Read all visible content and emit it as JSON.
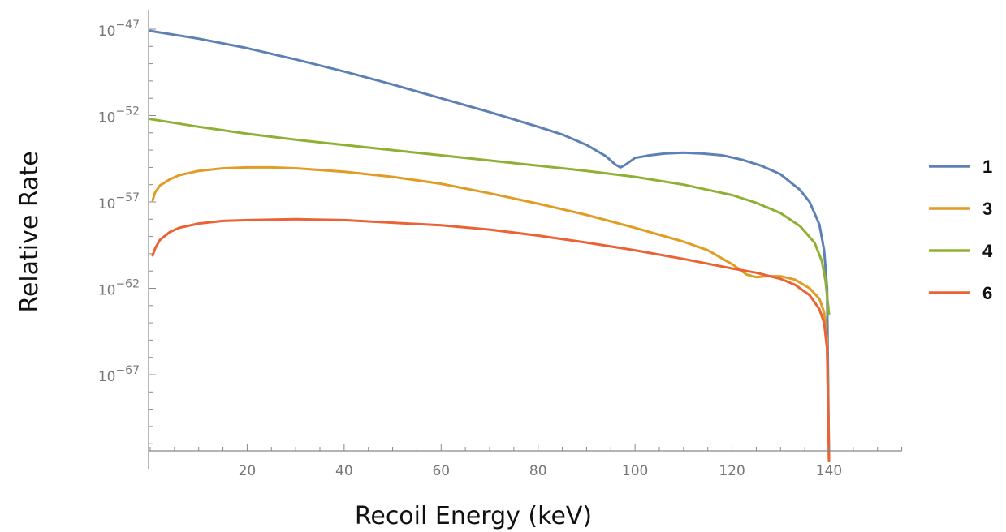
{
  "chart_data": {
    "type": "line",
    "title": "",
    "xlabel": "Recoil Energy (keV)",
    "ylabel": "Relative Rate",
    "y_scale": "log",
    "xlim": [
      0,
      155
    ],
    "ylim_exponent": [
      -72,
      -46.5
    ],
    "x_ticks": [
      20,
      40,
      60,
      80,
      100,
      120,
      140
    ],
    "y_tick_exponents": [
      -47,
      -52,
      -57,
      -62,
      -67
    ],
    "y_tick_labels": [
      {
        "base": "10",
        "exp": "−47"
      },
      {
        "base": "10",
        "exp": "−52"
      },
      {
        "base": "10",
        "exp": "−57"
      },
      {
        "base": "10",
        "exp": "−62"
      },
      {
        "base": "10",
        "exp": "−67"
      }
    ],
    "grid": false,
    "legend_position": "right",
    "series": [
      {
        "name": "1",
        "color": "#5e81b5",
        "points": [
          [
            0,
            -47.1
          ],
          [
            10,
            -47.55
          ],
          [
            20,
            -48.1
          ],
          [
            30,
            -48.75
          ],
          [
            40,
            -49.45
          ],
          [
            50,
            -50.2
          ],
          [
            60,
            -51.0
          ],
          [
            70,
            -51.8
          ],
          [
            80,
            -52.65
          ],
          [
            85,
            -53.1
          ],
          [
            90,
            -53.7
          ],
          [
            94,
            -54.35
          ],
          [
            96,
            -54.85
          ],
          [
            97,
            -55.0
          ],
          [
            98,
            -54.85
          ],
          [
            100,
            -54.45
          ],
          [
            103,
            -54.3
          ],
          [
            106,
            -54.2
          ],
          [
            110,
            -54.15
          ],
          [
            114,
            -54.2
          ],
          [
            118,
            -54.3
          ],
          [
            122,
            -54.55
          ],
          [
            126,
            -54.9
          ],
          [
            130,
            -55.4
          ],
          [
            134,
            -56.3
          ],
          [
            136,
            -57.0
          ],
          [
            138,
            -58.3
          ],
          [
            139,
            -59.8
          ],
          [
            139.6,
            -62.0
          ],
          [
            140,
            -72.0
          ]
        ]
      },
      {
        "name": "3",
        "color": "#e19c24",
        "points": [
          [
            0.5,
            -56.9
          ],
          [
            1,
            -56.45
          ],
          [
            2,
            -56.05
          ],
          [
            4,
            -55.7
          ],
          [
            6,
            -55.45
          ],
          [
            10,
            -55.2
          ],
          [
            15,
            -55.05
          ],
          [
            20,
            -55.0
          ],
          [
            25,
            -55.0
          ],
          [
            30,
            -55.05
          ],
          [
            40,
            -55.25
          ],
          [
            50,
            -55.55
          ],
          [
            60,
            -55.95
          ],
          [
            70,
            -56.5
          ],
          [
            80,
            -57.1
          ],
          [
            90,
            -57.75
          ],
          [
            100,
            -58.5
          ],
          [
            110,
            -59.3
          ],
          [
            115,
            -59.8
          ],
          [
            120,
            -60.6
          ],
          [
            123,
            -61.2
          ],
          [
            125,
            -61.35
          ],
          [
            127,
            -61.3
          ],
          [
            130,
            -61.3
          ],
          [
            133,
            -61.5
          ],
          [
            136,
            -62.0
          ],
          [
            138,
            -62.6
          ],
          [
            139,
            -63.4
          ],
          [
            139.6,
            -65.0
          ],
          [
            140,
            -72.0
          ]
        ]
      },
      {
        "name": "4",
        "color": "#8fb032",
        "points": [
          [
            0,
            -52.2
          ],
          [
            10,
            -52.65
          ],
          [
            20,
            -53.05
          ],
          [
            30,
            -53.4
          ],
          [
            40,
            -53.7
          ],
          [
            50,
            -54.0
          ],
          [
            60,
            -54.3
          ],
          [
            70,
            -54.6
          ],
          [
            80,
            -54.9
          ],
          [
            90,
            -55.2
          ],
          [
            100,
            -55.55
          ],
          [
            110,
            -56.0
          ],
          [
            120,
            -56.6
          ],
          [
            125,
            -57.05
          ],
          [
            130,
            -57.65
          ],
          [
            134,
            -58.4
          ],
          [
            137,
            -59.35
          ],
          [
            138.5,
            -60.4
          ],
          [
            139.3,
            -61.6
          ],
          [
            139.7,
            -62.7
          ],
          [
            140,
            -63.5
          ]
        ]
      },
      {
        "name": "6",
        "color": "#eb6235",
        "points": [
          [
            0.5,
            -60.1
          ],
          [
            1,
            -59.7
          ],
          [
            2,
            -59.2
          ],
          [
            4,
            -58.75
          ],
          [
            6,
            -58.5
          ],
          [
            10,
            -58.25
          ],
          [
            15,
            -58.1
          ],
          [
            20,
            -58.05
          ],
          [
            30,
            -58.0
          ],
          [
            40,
            -58.05
          ],
          [
            50,
            -58.2
          ],
          [
            60,
            -58.35
          ],
          [
            70,
            -58.6
          ],
          [
            80,
            -58.95
          ],
          [
            90,
            -59.35
          ],
          [
            100,
            -59.8
          ],
          [
            110,
            -60.3
          ],
          [
            120,
            -60.85
          ],
          [
            125,
            -61.1
          ],
          [
            130,
            -61.45
          ],
          [
            133,
            -61.8
          ],
          [
            136,
            -62.4
          ],
          [
            138,
            -63.2
          ],
          [
            139,
            -64.0
          ],
          [
            139.6,
            -65.5
          ],
          [
            140,
            -72.0
          ]
        ]
      }
    ]
  }
}
